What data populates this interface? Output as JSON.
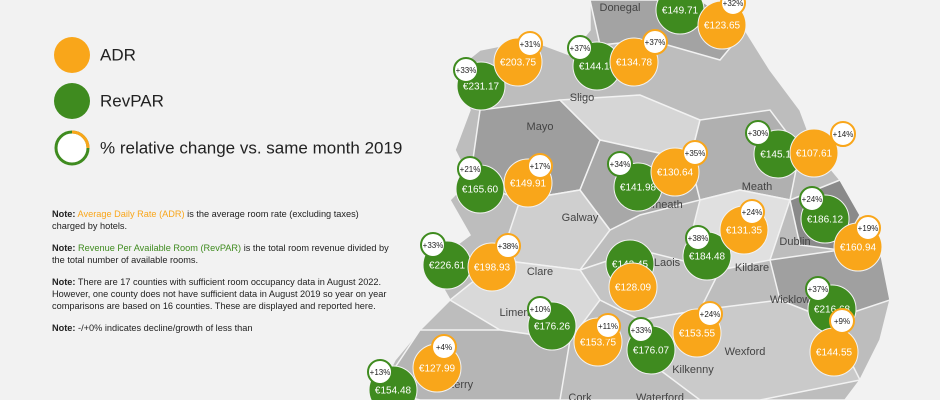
{
  "legend": {
    "adr": "ADR",
    "revpar": "RevPAR",
    "change": "% relative change vs. same month 2019"
  },
  "notes": [
    {
      "label": "Note:",
      "term": "Average Daily Rate (ADR)",
      "text": "is the average room rate (excluding taxes) charged by hotels."
    },
    {
      "label": "Note:",
      "term": "Revenue Per Available Room (RevPAR)",
      "text": "is the total room revenue divided by the total number of available rooms."
    },
    {
      "label": "Note:",
      "text": "There are 17 counties with sufficient room occupancy data in August 2022. However, one county does not have sufficient data in August 2019 so year on year comparisons are based on 16 counties. These are displayed and reported here."
    },
    {
      "label": "Note:",
      "text": "-/+0% indicates decline/growth of less than"
    }
  ],
  "counties": [
    "Donegal",
    "Sligo",
    "Mayo",
    "Galway",
    "Westmeath",
    "Meath",
    "Clare",
    "Laois",
    "Kildare",
    "Dublin",
    "Limerick",
    "Wicklow",
    "Kilkenny",
    "Wexford",
    "Kerry",
    "Cork",
    "Waterford"
  ],
  "adr_bubbles": [
    {
      "value": "€123.65",
      "change": "+32%"
    },
    {
      "value": "€203.75",
      "change": "+31%"
    },
    {
      "value": "€134.78",
      "change": "+37%"
    },
    {
      "value": "€107.61",
      "change": "+14%"
    },
    {
      "value": "€149.91",
      "change": "+17%"
    },
    {
      "value": "€130.64",
      "change": "+35%"
    },
    {
      "value": "€160.94",
      "change": "+19%"
    },
    {
      "value": "€131.35",
      "change": "+24%"
    },
    {
      "value": "€198.93",
      "change": "+38%"
    },
    {
      "value": "€128.09"
    },
    {
      "value": "€144.55",
      "change": "+9%"
    },
    {
      "value": "€153.75",
      "change": "+11%"
    },
    {
      "value": "€153.55",
      "change": "+24%"
    },
    {
      "value": "€127.99",
      "change": "+4%"
    }
  ],
  "revpar_bubbles": [
    {
      "value": "€149.71"
    },
    {
      "value": "€231.17",
      "change": "+33%"
    },
    {
      "value": "€144.14",
      "change": "+37%"
    },
    {
      "value": "€145.11",
      "change": "+30%"
    },
    {
      "value": "€165.60",
      "change": "+21%"
    },
    {
      "value": "€141.98",
      "change": "+34%"
    },
    {
      "value": "€186.12",
      "change": "+24%"
    },
    {
      "value": "€184.48",
      "change": "+38%"
    },
    {
      "value": "€226.61",
      "change": "+33%"
    },
    {
      "value": "€142.45"
    },
    {
      "value": "€216.68",
      "change": "+37%"
    },
    {
      "value": "€176.26",
      "change": "+10%"
    },
    {
      "value": "€176.07",
      "change": "+33%"
    },
    {
      "value": "€154.48",
      "change": "+13%"
    }
  ],
  "colors": {
    "adr": "#f9a61a",
    "revpar": "#3f8b1f"
  }
}
